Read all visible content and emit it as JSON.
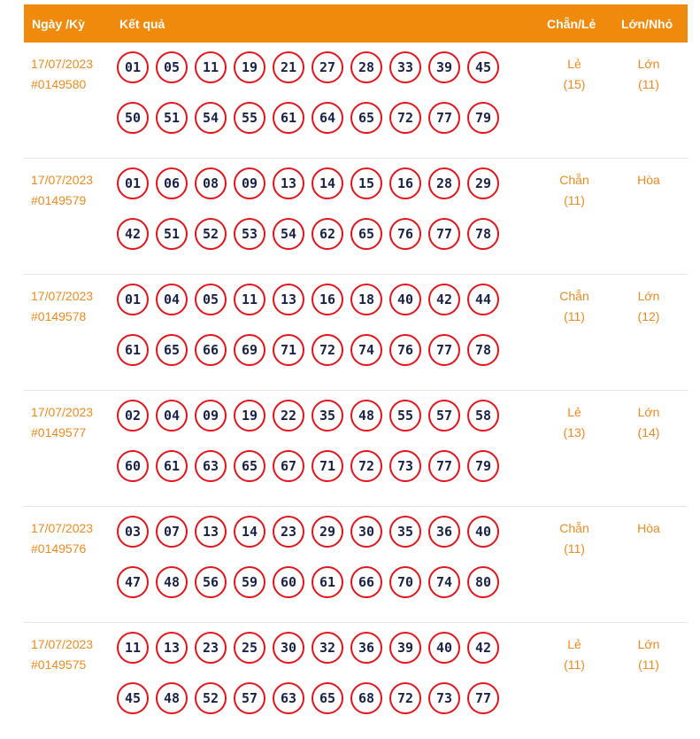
{
  "header": {
    "date_label": "Ngày /Kỳ",
    "result_label": "Kết quả",
    "parity_label": "Chẵn/Lẻ",
    "size_label": "Lớn/Nhỏ"
  },
  "colors": {
    "accent": "#f08a0c",
    "text_orange": "#ee8a1d",
    "ball_border": "#e5141a",
    "ball_text": "#1a2248"
  },
  "rows": [
    {
      "date": "17/07/2023",
      "draw": "#0149580",
      "balls": [
        "01",
        "05",
        "11",
        "19",
        "21",
        "27",
        "28",
        "33",
        "39",
        "45",
        "50",
        "51",
        "54",
        "55",
        "61",
        "64",
        "65",
        "72",
        "77",
        "79"
      ],
      "parity": "Lẻ",
      "parity_count": "(15)",
      "size": "Lớn",
      "size_count": "(11)"
    },
    {
      "date": "17/07/2023",
      "draw": "#0149579",
      "balls": [
        "01",
        "06",
        "08",
        "09",
        "13",
        "14",
        "15",
        "16",
        "28",
        "29",
        "42",
        "51",
        "52",
        "53",
        "54",
        "62",
        "65",
        "76",
        "77",
        "78"
      ],
      "parity": "Chẵn",
      "parity_count": "(11)",
      "size": "Hòa",
      "size_count": ""
    },
    {
      "date": "17/07/2023",
      "draw": "#0149578",
      "balls": [
        "01",
        "04",
        "05",
        "11",
        "13",
        "16",
        "18",
        "40",
        "42",
        "44",
        "61",
        "65",
        "66",
        "69",
        "71",
        "72",
        "74",
        "76",
        "77",
        "78"
      ],
      "parity": "Chẵn",
      "parity_count": "(11)",
      "size": "Lớn",
      "size_count": "(12)"
    },
    {
      "date": "17/07/2023",
      "draw": "#0149577",
      "balls": [
        "02",
        "04",
        "09",
        "19",
        "22",
        "35",
        "48",
        "55",
        "57",
        "58",
        "60",
        "61",
        "63",
        "65",
        "67",
        "71",
        "72",
        "73",
        "77",
        "79"
      ],
      "parity": "Lẻ",
      "parity_count": "(13)",
      "size": "Lớn",
      "size_count": "(14)"
    },
    {
      "date": "17/07/2023",
      "draw": "#0149576",
      "balls": [
        "03",
        "07",
        "13",
        "14",
        "23",
        "29",
        "30",
        "35",
        "36",
        "40",
        "47",
        "48",
        "56",
        "59",
        "60",
        "61",
        "66",
        "70",
        "74",
        "80"
      ],
      "parity": "Chẵn",
      "parity_count": "(11)",
      "size": "Hòa",
      "size_count": ""
    },
    {
      "date": "17/07/2023",
      "draw": "#0149575",
      "balls": [
        "11",
        "13",
        "23",
        "25",
        "30",
        "32",
        "36",
        "39",
        "40",
        "42",
        "45",
        "48",
        "52",
        "57",
        "63",
        "65",
        "68",
        "72",
        "73",
        "77"
      ],
      "parity": "Lẻ",
      "parity_count": "(11)",
      "size": "Lớn",
      "size_count": "(11)"
    }
  ]
}
